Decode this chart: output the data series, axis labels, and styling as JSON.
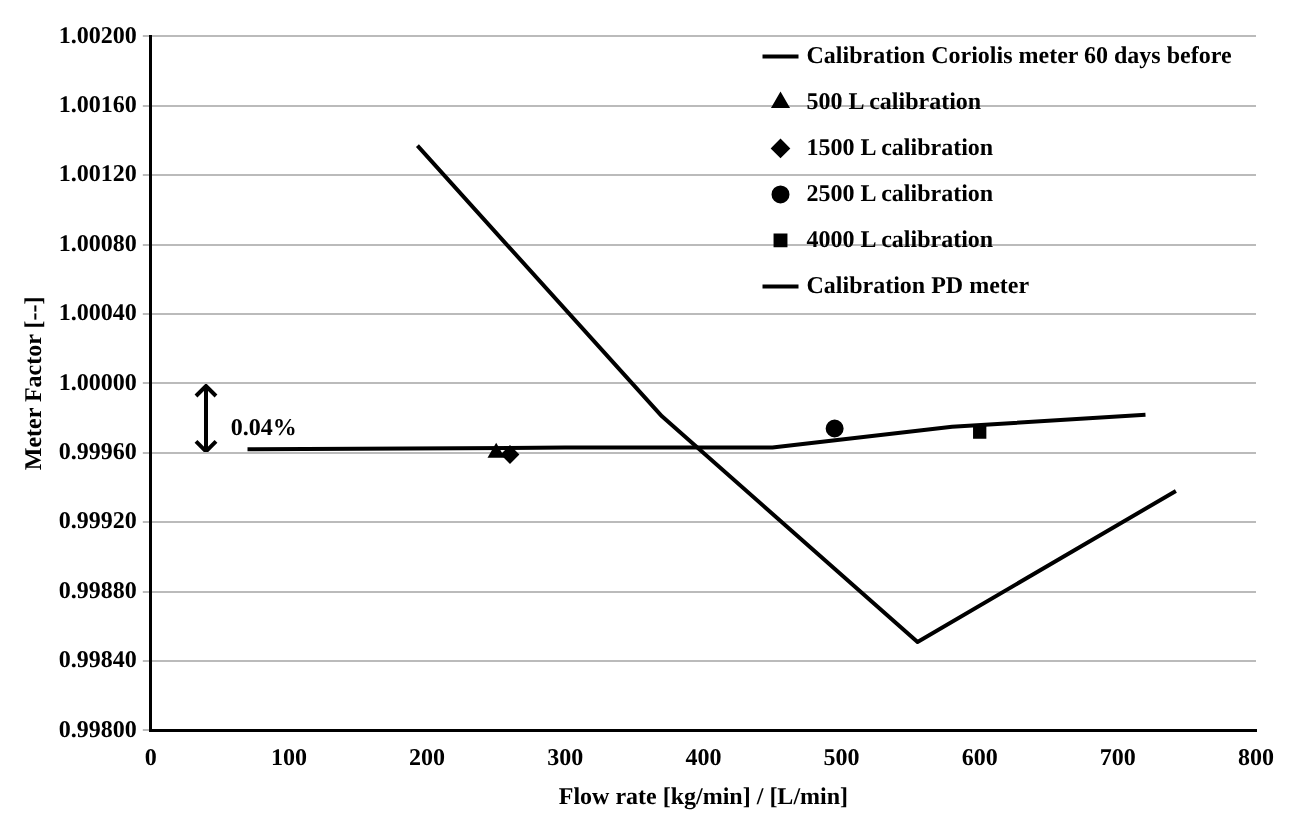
{
  "chart_data": {
    "type": "line",
    "xlabel": "Flow rate [kg/min] / [L/min]",
    "ylabel": "Meter Factor [--]",
    "xlim": [
      0,
      800
    ],
    "xticks": [
      0,
      100,
      200,
      300,
      400,
      500,
      600,
      700,
      800
    ],
    "ylim": [
      0.998,
      1.002
    ],
    "yticks": [
      {
        "value": 0.998,
        "label": "0.99800"
      },
      {
        "value": 0.9984,
        "label": "0.99840"
      },
      {
        "value": 0.9988,
        "label": "0.99880"
      },
      {
        "value": 0.9992,
        "label": "0.99920"
      },
      {
        "value": 0.9996,
        "label": "0.99960"
      },
      {
        "value": 1.0,
        "label": "1.00000"
      },
      {
        "value": 1.0004,
        "label": "1.00040"
      },
      {
        "value": 1.0008,
        "label": "1.00080"
      },
      {
        "value": 1.0012,
        "label": "1.00120"
      },
      {
        "value": 1.0016,
        "label": "1.00160"
      },
      {
        "value": 1.002,
        "label": "1.00200"
      }
    ],
    "grid": "y",
    "legend": "top right",
    "annotations": [
      "0.04%"
    ],
    "series": [
      {
        "name": "Calibration Coriolis meter 60 days before",
        "color": "#000000",
        "marker": "none",
        "x": [
          70,
          300,
          450,
          580,
          720
        ],
        "values": [
          0.99962,
          0.99963,
          0.99963,
          0.99975,
          0.99982
        ]
      },
      {
        "name": "500 L calibration",
        "type": "scatter",
        "color": "#000000",
        "marker": "triangle",
        "x": [
          250
        ],
        "values": [
          0.9996
        ]
      },
      {
        "name": "1500 L calibration",
        "type": "scatter",
        "color": "#000000",
        "marker": "diamond",
        "x": [
          260
        ],
        "values": [
          0.99959
        ]
      },
      {
        "name": "2500 L calibration",
        "type": "scatter",
        "color": "#000000",
        "marker": "circle",
        "x": [
          495
        ],
        "values": [
          0.99974
        ]
      },
      {
        "name": "4000 L calibration",
        "type": "scatter",
        "color": "#000000",
        "marker": "square",
        "x": [
          600
        ],
        "values": [
          0.99972
        ]
      },
      {
        "name": "Calibration PD meter",
        "color": "#000000",
        "marker": "none",
        "x": [
          193,
          370,
          555,
          742
        ],
        "values": [
          1.00137,
          0.99981,
          0.99851,
          0.99938
        ]
      }
    ]
  }
}
